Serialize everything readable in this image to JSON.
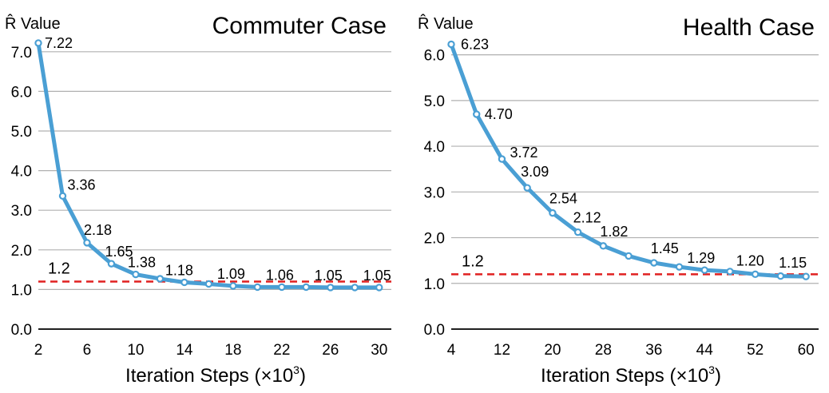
{
  "chart_data": [
    {
      "type": "line",
      "title": "Commuter Case",
      "ylabel": "R̂ Value",
      "xlabel": "Iteration Steps (×10",
      "xlabel_sup": "3",
      "xlabel_close": ")",
      "xlim": [
        2,
        31
      ],
      "ylim": [
        0,
        7.5
      ],
      "xticks": [
        2,
        6,
        10,
        14,
        18,
        22,
        26,
        30
      ],
      "yticks": [
        0,
        1,
        2,
        3,
        4,
        5,
        6,
        7
      ],
      "ytick_labels": [
        "0.0",
        "1.0",
        "2.0",
        "3.0",
        "4.0",
        "5.0",
        "6.0",
        "7.0"
      ],
      "grid": "horizontal",
      "series": [
        {
          "color": "#4a9fd4",
          "x": [
            2,
            4,
            6,
            8,
            10,
            12,
            14,
            16,
            18,
            20,
            22,
            24,
            26,
            28,
            30
          ],
          "y": [
            7.22,
            3.36,
            2.18,
            1.65,
            1.38,
            1.27,
            1.18,
            1.14,
            1.09,
            1.06,
            1.06,
            1.06,
            1.05,
            1.05,
            1.05
          ]
        }
      ],
      "data_labels": [
        {
          "x": 2,
          "y": 7.22,
          "text": "7.22"
        },
        {
          "x": 4,
          "y": 3.36,
          "text": "3.36"
        },
        {
          "x": 6,
          "y": 2.18,
          "text": "2.18"
        },
        {
          "x": 8,
          "y": 1.65,
          "text": "1.65"
        },
        {
          "x": 10,
          "y": 1.38,
          "text": "1.38"
        },
        {
          "x": 14,
          "y": 1.18,
          "text": "1.18"
        },
        {
          "x": 18,
          "y": 1.09,
          "text": "1.09"
        },
        {
          "x": 22,
          "y": 1.06,
          "text": "1.06"
        },
        {
          "x": 26,
          "y": 1.05,
          "text": "1.05"
        },
        {
          "x": 30,
          "y": 1.05,
          "text": "1.05"
        }
      ],
      "reference_line": {
        "y": 1.2,
        "label": "1.2",
        "color": "#e02020"
      }
    },
    {
      "type": "line",
      "title": "Health Case",
      "ylabel": "R̂ Value",
      "xlabel": "Iteration Steps (×10",
      "xlabel_sup": "3",
      "xlabel_close": ")",
      "xlim": [
        4,
        62
      ],
      "ylim": [
        0,
        6.5
      ],
      "xticks": [
        4,
        12,
        20,
        28,
        36,
        44,
        52,
        60
      ],
      "yticks": [
        0,
        1,
        2,
        3,
        4,
        5,
        6
      ],
      "ytick_labels": [
        "0.0",
        "1.0",
        "2.0",
        "3.0",
        "4.0",
        "5.0",
        "6.0"
      ],
      "grid": "horizontal",
      "series": [
        {
          "color": "#4a9fd4",
          "x": [
            4,
            8,
            12,
            16,
            20,
            24,
            28,
            32,
            36,
            40,
            44,
            48,
            52,
            56,
            60
          ],
          "y": [
            6.23,
            4.7,
            3.72,
            3.09,
            2.54,
            2.12,
            1.82,
            1.6,
            1.45,
            1.36,
            1.29,
            1.26,
            1.2,
            1.16,
            1.15
          ]
        }
      ],
      "data_labels": [
        {
          "x": 4,
          "y": 6.23,
          "text": "6.23"
        },
        {
          "x": 8,
          "y": 4.7,
          "text": "4.70"
        },
        {
          "x": 12,
          "y": 3.72,
          "text": "3.72"
        },
        {
          "x": 16,
          "y": 3.09,
          "text": "3.09"
        },
        {
          "x": 20,
          "y": 2.54,
          "text": "2.54"
        },
        {
          "x": 24,
          "y": 2.12,
          "text": "2.12"
        },
        {
          "x": 28,
          "y": 1.82,
          "text": "1.82"
        },
        {
          "x": 36,
          "y": 1.45,
          "text": "1.45"
        },
        {
          "x": 44,
          "y": 1.29,
          "text": "1.29"
        },
        {
          "x": 52,
          "y": 1.2,
          "text": "1.20"
        },
        {
          "x": 60,
          "y": 1.15,
          "text": "1.15"
        }
      ],
      "reference_line": {
        "y": 1.2,
        "label": "1.2",
        "color": "#e02020"
      }
    }
  ]
}
